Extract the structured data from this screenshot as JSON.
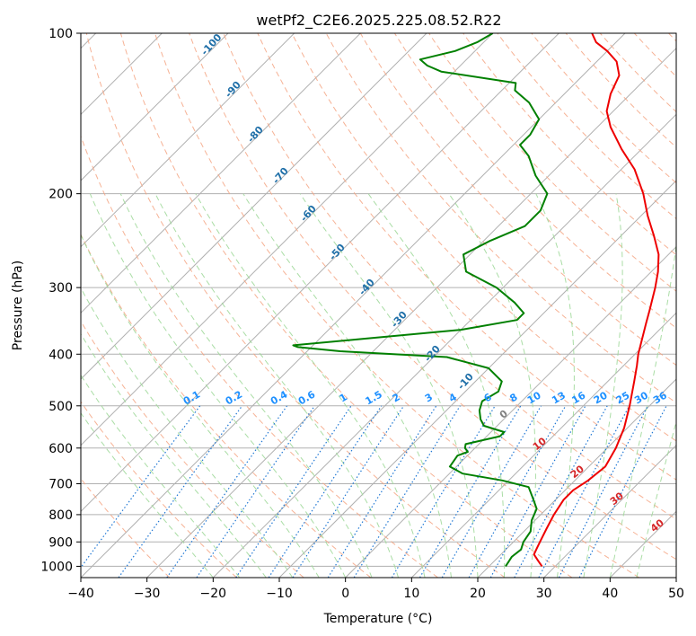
{
  "chart_data": {
    "type": "skew-t",
    "title": "wetPf2_C2E6.2025.225.08.52.R22",
    "xlabel": "Temperature (°C)",
    "ylabel": "Pressure (hPa)",
    "xlim": [
      -40,
      50
    ],
    "ylim": [
      1050,
      100
    ],
    "yscale": "log",
    "x_ticks": [
      "−40",
      "−30",
      "−20",
      "−10",
      "0",
      "10",
      "20",
      "30",
      "40",
      "50"
    ],
    "x_tick_values": [
      -40,
      -30,
      -20,
      -10,
      0,
      10,
      20,
      30,
      40,
      50
    ],
    "y_ticks": [
      "100",
      "200",
      "300",
      "400",
      "500",
      "600",
      "700",
      "800",
      "900",
      "1000"
    ],
    "y_tick_values": [
      100,
      200,
      300,
      400,
      500,
      600,
      700,
      800,
      900,
      1000
    ],
    "grid": true,
    "series": [
      {
        "color": "#ee0000",
        "points": [
          {
            "p": 1000,
            "t": 28
          },
          {
            "p": 975,
            "t": 26.5
          },
          {
            "p": 950,
            "t": 25
          },
          {
            "p": 925,
            "t": 24.5
          },
          {
            "p": 900,
            "t": 24
          },
          {
            "p": 850,
            "t": 23
          },
          {
            "p": 800,
            "t": 22
          },
          {
            "p": 750,
            "t": 21.2
          },
          {
            "p": 720,
            "t": 21.2
          },
          {
            "p": 690,
            "t": 22
          },
          {
            "p": 650,
            "t": 22.5
          },
          {
            "p": 600,
            "t": 21.3
          },
          {
            "p": 550,
            "t": 19.5
          },
          {
            "p": 500,
            "t": 17
          },
          {
            "p": 450,
            "t": 14
          },
          {
            "p": 420,
            "t": 12
          },
          {
            "p": 400,
            "t": 10.5
          },
          {
            "p": 350,
            "t": 7
          },
          {
            "p": 330,
            "t": 5.5
          },
          {
            "p": 300,
            "t": 3
          },
          {
            "p": 280,
            "t": 1
          },
          {
            "p": 260,
            "t": -1.5
          },
          {
            "p": 240,
            "t": -5
          },
          {
            "p": 220,
            "t": -9
          },
          {
            "p": 200,
            "t": -13
          },
          {
            "p": 180,
            "t": -18
          },
          {
            "p": 165,
            "t": -23
          },
          {
            "p": 150,
            "t": -28
          },
          {
            "p": 140,
            "t": -31
          },
          {
            "p": 130,
            "t": -33
          },
          {
            "p": 120,
            "t": -34.5
          },
          {
            "p": 113,
            "t": -37
          },
          {
            "p": 108,
            "t": -40
          },
          {
            "p": 104,
            "t": -43
          },
          {
            "p": 100,
            "t": -45
          }
        ]
      },
      {
        "color": "#008000",
        "points": [
          {
            "p": 1000,
            "t": 22.5
          },
          {
            "p": 960,
            "t": 22
          },
          {
            "p": 930,
            "t": 22.3
          },
          {
            "p": 900,
            "t": 21.5
          },
          {
            "p": 860,
            "t": 21
          },
          {
            "p": 820,
            "t": 19.5
          },
          {
            "p": 780,
            "t": 18.5
          },
          {
            "p": 740,
            "t": 16
          },
          {
            "p": 710,
            "t": 14
          },
          {
            "p": 690,
            "t": 9
          },
          {
            "p": 670,
            "t": 2
          },
          {
            "p": 650,
            "t": -1
          },
          {
            "p": 620,
            "t": -1.5
          },
          {
            "p": 610,
            "t": -0.5
          },
          {
            "p": 600,
            "t": -1.5
          },
          {
            "p": 590,
            "t": -2
          },
          {
            "p": 570,
            "t": 2
          },
          {
            "p": 560,
            "t": 2
          },
          {
            "p": 545,
            "t": -2
          },
          {
            "p": 530,
            "t": -3.5
          },
          {
            "p": 510,
            "t": -5
          },
          {
            "p": 490,
            "t": -6
          },
          {
            "p": 470,
            "t": -5
          },
          {
            "p": 450,
            "t": -6
          },
          {
            "p": 425,
            "t": -10
          },
          {
            "p": 405,
            "t": -18
          },
          {
            "p": 395,
            "t": -35
          },
          {
            "p": 388,
            "t": -42
          },
          {
            "p": 385,
            "t": -43
          },
          {
            "p": 375,
            "t": -34
          },
          {
            "p": 360,
            "t": -20
          },
          {
            "p": 345,
            "t": -13
          },
          {
            "p": 335,
            "t": -13
          },
          {
            "p": 320,
            "t": -16
          },
          {
            "p": 300,
            "t": -21
          },
          {
            "p": 280,
            "t": -28
          },
          {
            "p": 260,
            "t": -31
          },
          {
            "p": 245,
            "t": -29
          },
          {
            "p": 230,
            "t": -26
          },
          {
            "p": 215,
            "t": -26
          },
          {
            "p": 200,
            "t": -27.5
          },
          {
            "p": 185,
            "t": -32
          },
          {
            "p": 170,
            "t": -36
          },
          {
            "p": 162,
            "t": -39
          },
          {
            "p": 155,
            "t": -39
          },
          {
            "p": 145,
            "t": -40
          },
          {
            "p": 135,
            "t": -44
          },
          {
            "p": 128,
            "t": -48
          },
          {
            "p": 124,
            "t": -49
          },
          {
            "p": 118,
            "t": -62
          },
          {
            "p": 115,
            "t": -65
          },
          {
            "p": 112,
            "t": -67
          },
          {
            "p": 108,
            "t": -63
          },
          {
            "p": 104,
            "t": -61
          },
          {
            "p": 100,
            "t": -60
          }
        ]
      }
    ],
    "mixing_ratio_labels": [
      "0.1",
      "0.2",
      "0.4",
      "0.6",
      "1",
      "1.5",
      "2",
      "3",
      "4",
      "6",
      "8",
      "10",
      "13",
      "16",
      "20",
      "25",
      "30",
      "36"
    ],
    "dry_adiabat_labels": [
      "-100",
      "-90",
      "-80",
      "-70",
      "-60",
      "-50",
      "-40",
      "-30",
      "-20",
      "-10"
    ],
    "moist_adiabat_labels": [
      "0",
      "10",
      "20",
      "30",
      "40"
    ],
    "colors": {
      "temperature": "#ee0000",
      "dewpoint": "#008000",
      "isotherm_grid": "#b0b0b0",
      "dry_adiabat": "#f4a582",
      "moist_adiabat": "#a1d99b",
      "mixing_ratio": "#1f77d4",
      "dry_adiabat_label": "#1f6fa8",
      "mixing_ratio_label": "#1e90ff",
      "moist_label_zero": "#808080",
      "moist_label": "#d62728"
    }
  }
}
